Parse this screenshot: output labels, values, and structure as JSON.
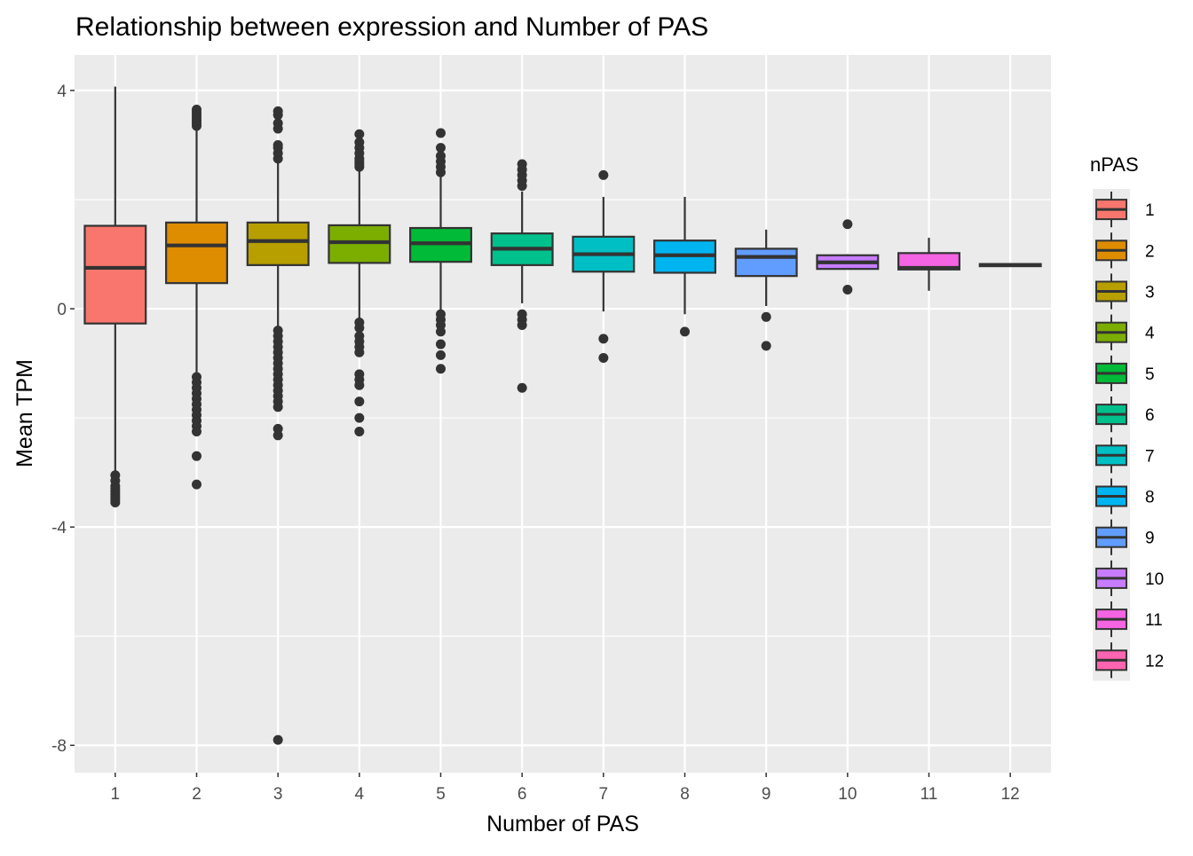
{
  "chart_data": {
    "type": "box",
    "title": "Relationship between expression and Number of PAS",
    "xlabel": "Number of PAS",
    "ylabel": "Mean TPM",
    "ylim": [
      -8.5,
      4.65
    ],
    "yticks": [
      4,
      0,
      -4,
      -8
    ],
    "ytick_labels": [
      "4",
      "0",
      "-4",
      "-8"
    ],
    "grid": true,
    "legend": {
      "title": "nPAS",
      "position": "right"
    },
    "categories": [
      "1",
      "2",
      "3",
      "4",
      "5",
      "6",
      "7",
      "8",
      "9",
      "10",
      "11",
      "12"
    ],
    "colors": [
      "#F8766D",
      "#DE8C00",
      "#B79F00",
      "#7CAE00",
      "#00BA38",
      "#00C08B",
      "#00BFC4",
      "#00B4F0",
      "#619CFF",
      "#C77CFF",
      "#F564E3",
      "#FF64B0"
    ],
    "boxes": [
      {
        "q1": -0.27,
        "median": 0.75,
        "q3": 1.52,
        "whisker_low": -3.0,
        "whisker_high": 4.07,
        "outliers": [
          -3.05,
          -3.15,
          -3.25,
          -3.3,
          -3.35,
          -3.4,
          -3.45,
          -3.5,
          -3.55
        ]
      },
      {
        "q1": 0.47,
        "median": 1.16,
        "q3": 1.58,
        "whisker_low": -1.2,
        "whisker_high": 3.3,
        "outliers": [
          3.35,
          3.4,
          3.45,
          3.5,
          3.55,
          3.6,
          3.65,
          -1.25,
          -1.35,
          -1.45,
          -1.55,
          -1.65,
          -1.75,
          -1.85,
          -1.95,
          -2.05,
          -2.15,
          -2.25,
          -2.7,
          -3.22
        ]
      },
      {
        "q1": 0.8,
        "median": 1.24,
        "q3": 1.58,
        "whisker_low": -0.35,
        "whisker_high": 2.7,
        "outliers": [
          2.75,
          2.85,
          2.95,
          3.0,
          3.3,
          3.4,
          3.55,
          3.62,
          -0.4,
          -0.5,
          -0.6,
          -0.7,
          -0.8,
          -0.9,
          -1.0,
          -1.1,
          -1.2,
          -1.3,
          -1.4,
          -1.5,
          -1.6,
          -1.7,
          -1.8,
          -2.2,
          -2.32,
          -7.9
        ]
      },
      {
        "q1": 0.84,
        "median": 1.22,
        "q3": 1.53,
        "whisker_low": -0.2,
        "whisker_high": 2.55,
        "outliers": [
          2.6,
          2.65,
          2.7,
          2.75,
          2.85,
          2.95,
          3.05,
          3.2,
          -0.25,
          -0.35,
          -0.5,
          -0.6,
          -0.7,
          -0.8,
          -1.2,
          -1.3,
          -1.4,
          -1.7,
          -2.0,
          -2.25
        ]
      },
      {
        "q1": 0.86,
        "median": 1.2,
        "q3": 1.48,
        "whisker_low": -0.05,
        "whisker_high": 2.45,
        "outliers": [
          2.5,
          2.6,
          2.7,
          2.8,
          2.95,
          3.22,
          -0.1,
          -0.2,
          -0.3,
          -0.42,
          -0.65,
          -0.85,
          -1.1
        ]
      },
      {
        "q1": 0.8,
        "median": 1.1,
        "q3": 1.38,
        "whisker_low": 0.1,
        "whisker_high": 2.15,
        "outliers": [
          2.25,
          2.35,
          2.45,
          2.55,
          2.65,
          -0.1,
          -0.2,
          -0.3,
          -1.45
        ]
      },
      {
        "q1": 0.68,
        "median": 1.0,
        "q3": 1.32,
        "whisker_low": -0.05,
        "whisker_high": 2.05,
        "outliers": [
          2.45,
          -0.55,
          -0.9
        ]
      },
      {
        "q1": 0.66,
        "median": 0.98,
        "q3": 1.25,
        "whisker_low": -0.1,
        "whisker_high": 2.05,
        "outliers": [
          -0.42
        ]
      },
      {
        "q1": 0.6,
        "median": 0.95,
        "q3": 1.1,
        "whisker_low": 0.05,
        "whisker_high": 1.45,
        "outliers": [
          -0.15,
          -0.68
        ]
      },
      {
        "q1": 0.73,
        "median": 0.85,
        "q3": 0.98,
        "whisker_low": 0.73,
        "whisker_high": 1.0,
        "outliers": [
          1.55,
          0.35
        ]
      },
      {
        "q1": 0.72,
        "median": 0.75,
        "q3": 1.02,
        "whisker_low": 0.33,
        "whisker_high": 1.3,
        "outliers": []
      },
      {
        "q1": 0.78,
        "median": 0.8,
        "q3": 0.82,
        "whisker_low": 0.78,
        "whisker_high": 0.82,
        "outliers": []
      }
    ]
  }
}
